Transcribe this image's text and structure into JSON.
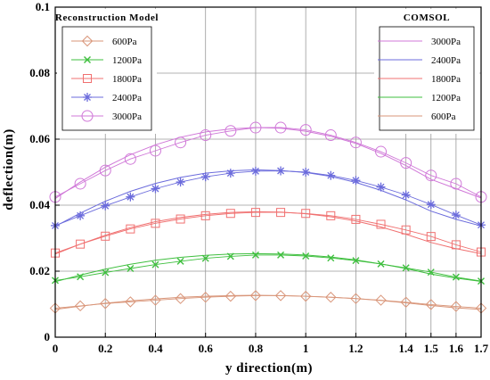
{
  "chart_data": {
    "type": "line",
    "xlabel": "y direction(m)",
    "ylabel": "deflection(m)",
    "xlim": [
      0,
      1.7
    ],
    "ylim": [
      0,
      0.1
    ],
    "x_tick_values": [
      0,
      0.2,
      0.4,
      0.6,
      0.8,
      1,
      1.2,
      1.4,
      1.5,
      1.6,
      1.7
    ],
    "x_tick_labels": [
      "0",
      "0.2",
      "0.4",
      "0.6",
      "0.8",
      "1",
      "1.2",
      "1.4",
      "1.5",
      "1.6",
      "1.7"
    ],
    "y_tick_values": [
      0,
      0.02,
      0.04,
      0.06,
      0.08,
      0.1
    ],
    "y_tick_labels": [
      "0",
      "0.02",
      "0.04",
      "0.06",
      "0.08",
      "0.1"
    ],
    "grid": true,
    "legends": [
      {
        "title": "Reconstruction Model",
        "placement": "top-left",
        "entries": [
          {
            "label": "600Pa",
            "marker": "diamond",
            "color": "#d9967a"
          },
          {
            "label": "1200Pa",
            "marker": "x",
            "color": "#3fbf3f"
          },
          {
            "label": "1800Pa",
            "marker": "square",
            "color": "#f07070"
          },
          {
            "label": "2400Pa",
            "marker": "star",
            "color": "#6b6bdc"
          },
          {
            "label": "3000Pa",
            "marker": "circle",
            "color": "#d078d8"
          }
        ]
      },
      {
        "title": "COMSOL",
        "placement": "top-right",
        "entries": [
          {
            "label": "3000Pa",
            "color": "#d078d8"
          },
          {
            "label": "2400Pa",
            "color": "#6b6bdc"
          },
          {
            "label": "1800Pa",
            "color": "#f07070"
          },
          {
            "label": "1200Pa",
            "color": "#3fbf3f"
          },
          {
            "label": "600Pa",
            "color": "#d9967a"
          }
        ]
      }
    ],
    "x": [
      0,
      0.1,
      0.2,
      0.3,
      0.4,
      0.5,
      0.6,
      0.7,
      0.8,
      0.9,
      1,
      1.1,
      1.2,
      1.3,
      1.4,
      1.5,
      1.6,
      1.7
    ],
    "series": [
      {
        "group": "Reconstruction Model",
        "label": "600Pa",
        "color": "#d9967a",
        "marker": "diamond",
        "values": [
          0.0088,
          0.0095,
          0.0102,
          0.0107,
          0.0112,
          0.0117,
          0.0121,
          0.0124,
          0.0126,
          0.0126,
          0.0124,
          0.0121,
          0.0117,
          0.0112,
          0.0106,
          0.0099,
          0.0093,
          0.0088
        ]
      },
      {
        "group": "Reconstruction Model",
        "label": "1200Pa",
        "color": "#3fbf3f",
        "marker": "x",
        "values": [
          0.0172,
          0.0183,
          0.0196,
          0.0208,
          0.022,
          0.023,
          0.0239,
          0.0245,
          0.0249,
          0.0249,
          0.0246,
          0.024,
          0.0232,
          0.0222,
          0.021,
          0.0197,
          0.0182,
          0.017
        ]
      },
      {
        "group": "Reconstruction Model",
        "label": "1800Pa",
        "color": "#f07070",
        "marker": "square",
        "values": [
          0.0255,
          0.0282,
          0.0306,
          0.0328,
          0.0345,
          0.0358,
          0.0368,
          0.0375,
          0.0378,
          0.0378,
          0.0375,
          0.0368,
          0.0357,
          0.0342,
          0.0325,
          0.0305,
          0.028,
          0.0258
        ]
      },
      {
        "group": "Reconstruction Model",
        "label": "2400Pa",
        "color": "#6b6bdc",
        "marker": "star",
        "values": [
          0.0338,
          0.0368,
          0.0398,
          0.0425,
          0.045,
          0.047,
          0.0486,
          0.0497,
          0.0503,
          0.0504,
          0.05,
          0.049,
          0.0475,
          0.0455,
          0.0431,
          0.0402,
          0.037,
          0.034
        ]
      },
      {
        "group": "Reconstruction Model",
        "label": "3000Pa",
        "color": "#d078d8",
        "marker": "circle",
        "values": [
          0.0425,
          0.0465,
          0.0505,
          0.054,
          0.0565,
          0.059,
          0.0612,
          0.0625,
          0.0635,
          0.0635,
          0.0628,
          0.0612,
          0.059,
          0.0562,
          0.0528,
          0.049,
          0.0465,
          0.0425
        ]
      },
      {
        "group": "COMSOL",
        "label": "3000Pa",
        "color": "#d078d8",
        "marker": "none",
        "values": [
          0.042,
          0.047,
          0.0515,
          0.0553,
          0.0583,
          0.0606,
          0.0622,
          0.0631,
          0.0635,
          0.0633,
          0.0624,
          0.0609,
          0.0587,
          0.0557,
          0.052,
          0.0478,
          0.045,
          0.0422
        ]
      },
      {
        "group": "COMSOL",
        "label": "2400Pa",
        "color": "#6b6bdc",
        "marker": "none",
        "values": [
          0.0336,
          0.0376,
          0.0412,
          0.0442,
          0.0466,
          0.0484,
          0.0497,
          0.0504,
          0.0507,
          0.0505,
          0.0499,
          0.0487,
          0.0469,
          0.0445,
          0.0416,
          0.0382,
          0.0357,
          0.0337
        ]
      },
      {
        "group": "COMSOL",
        "label": "1800Pa",
        "color": "#f07070",
        "marker": "none",
        "values": [
          0.0252,
          0.0282,
          0.0309,
          0.0332,
          0.035,
          0.0363,
          0.0372,
          0.0378,
          0.038,
          0.0379,
          0.0374,
          0.0365,
          0.0352,
          0.0334,
          0.0312,
          0.0287,
          0.0268,
          0.0253
        ]
      },
      {
        "group": "COMSOL",
        "label": "1200Pa",
        "color": "#3fbf3f",
        "marker": "none",
        "values": [
          0.0168,
          0.0188,
          0.0206,
          0.0221,
          0.0233,
          0.0242,
          0.0248,
          0.0252,
          0.0253,
          0.0252,
          0.0249,
          0.0243,
          0.0234,
          0.0222,
          0.0208,
          0.0191,
          0.0179,
          0.0169
        ]
      },
      {
        "group": "COMSOL",
        "label": "600Pa",
        "color": "#d9967a",
        "marker": "none",
        "values": [
          0.0084,
          0.0094,
          0.0103,
          0.011,
          0.0116,
          0.0121,
          0.0124,
          0.0126,
          0.0127,
          0.0126,
          0.0124,
          0.0121,
          0.0117,
          0.0111,
          0.0104,
          0.0096,
          0.0089,
          0.0084
        ]
      }
    ]
  }
}
